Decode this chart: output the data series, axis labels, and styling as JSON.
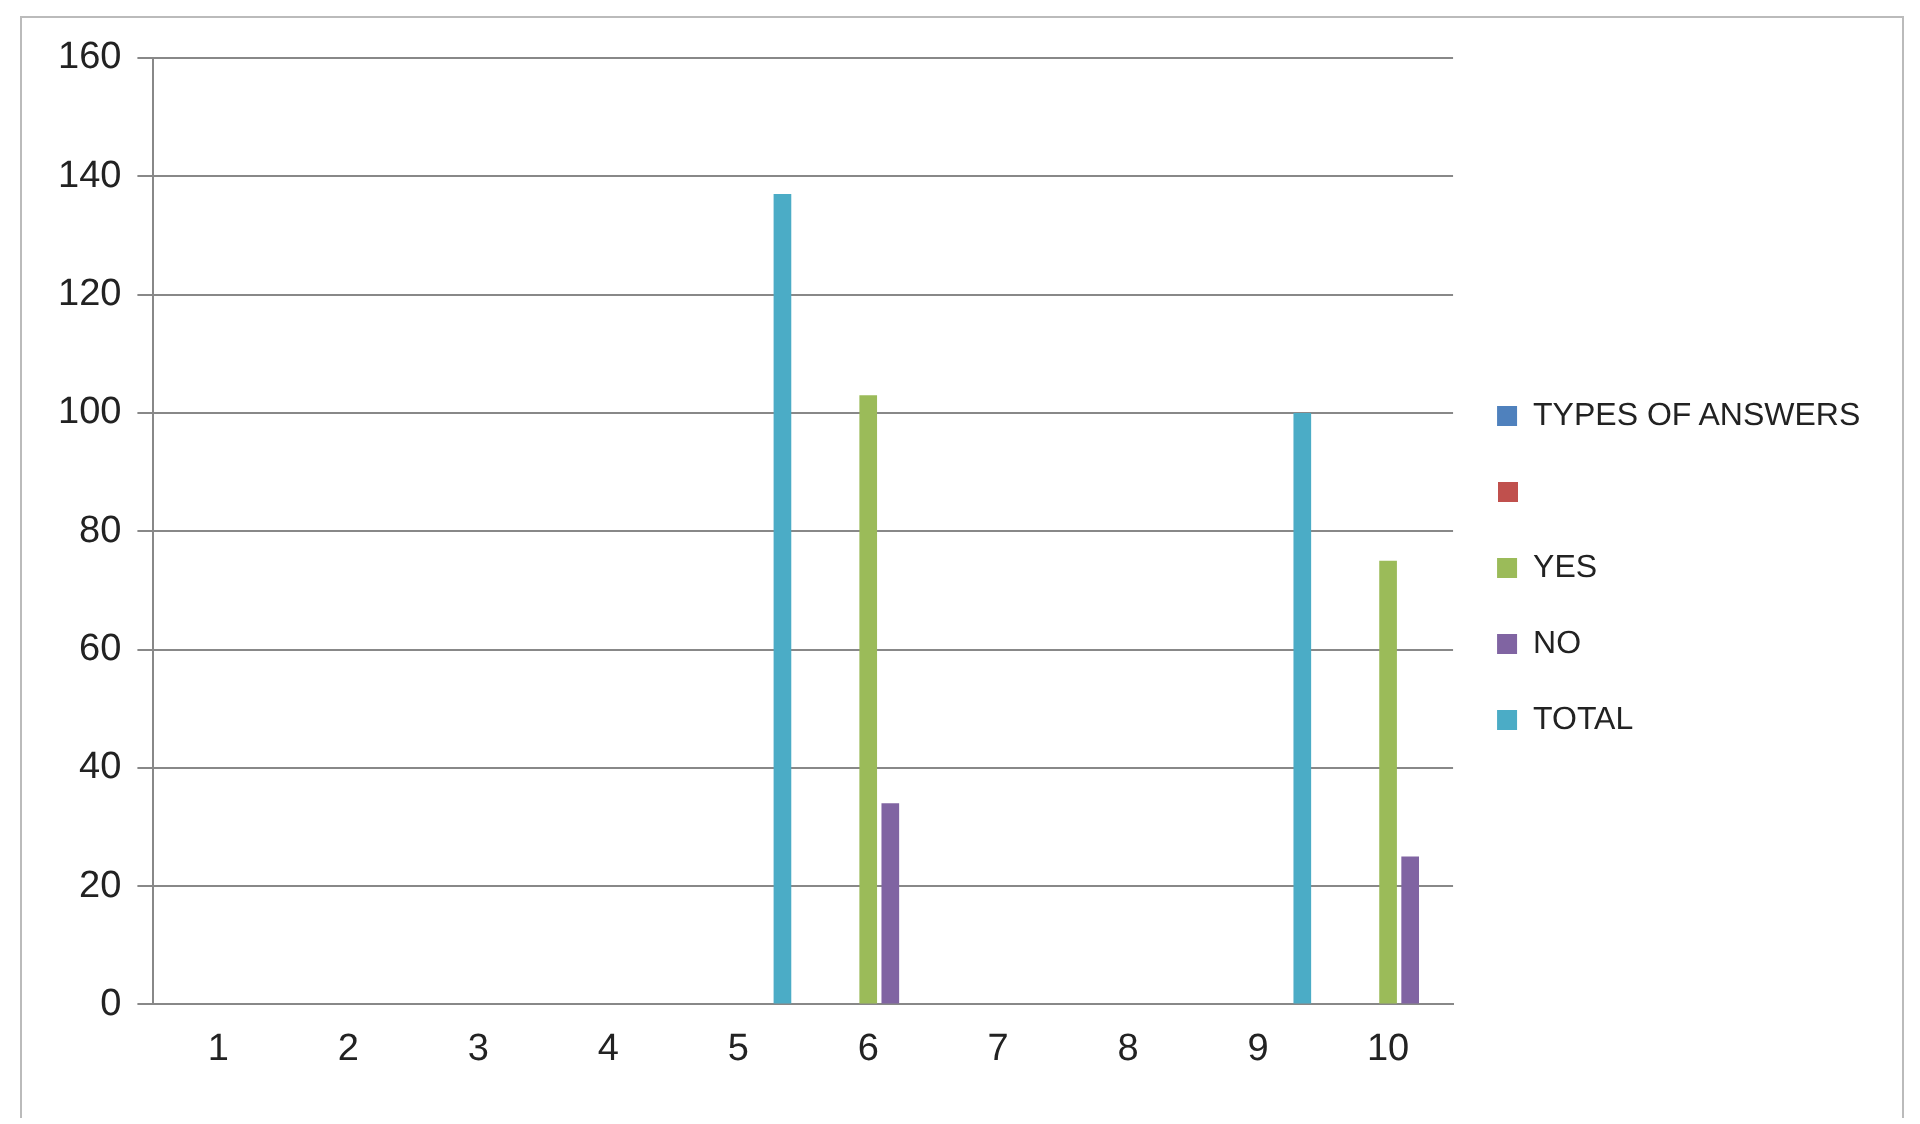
{
  "chart_data": {
    "type": "bar",
    "categories": [
      "1",
      "2",
      "3",
      "4",
      "5",
      "6",
      "7",
      "8",
      "9",
      "10"
    ],
    "series": [
      {
        "name": "TYPES OF ANSWERS",
        "color": "#4f81bd",
        "values": [
          null,
          null,
          null,
          null,
          null,
          null,
          null,
          null,
          null,
          null
        ]
      },
      {
        "color": "#c0504d",
        "values": [
          null,
          null,
          null,
          null,
          null,
          null,
          null,
          null,
          null,
          null
        ]
      },
      {
        "name": "YES",
        "color": "#9bbb59",
        "values": [
          null,
          null,
          null,
          null,
          null,
          103,
          null,
          null,
          null,
          75
        ]
      },
      {
        "name": "NO",
        "color": "#8064a2",
        "values": [
          null,
          null,
          null,
          null,
          null,
          34,
          null,
          null,
          null,
          25
        ]
      },
      {
        "name": "TOTAL",
        "color": "#4bacc6",
        "values": [
          null,
          null,
          null,
          null,
          137,
          null,
          null,
          null,
          100,
          null
        ]
      }
    ],
    "ylim": [
      0,
      160
    ],
    "yticks": [
      0,
      20,
      40,
      60,
      80,
      100,
      120,
      140,
      160
    ],
    "grid": "y",
    "legend": "right"
  }
}
